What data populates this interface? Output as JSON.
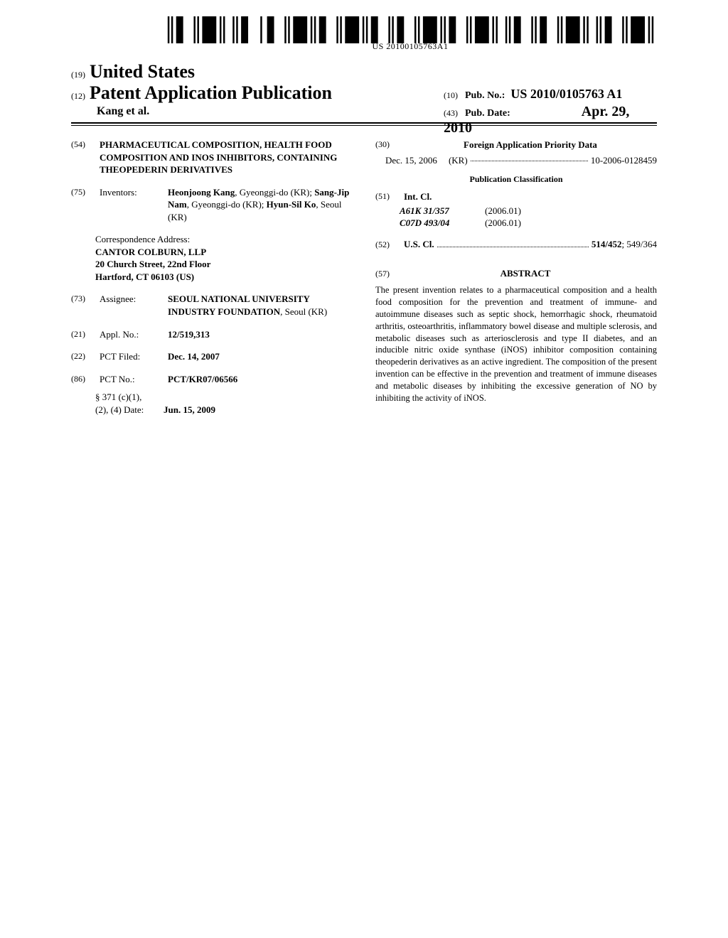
{
  "barcode_text": "US 20100105763A1",
  "header": {
    "inid19": "(19)",
    "country": "United States",
    "inid12": "(12)",
    "kind": "Patent Application Publication",
    "authors": "Kang et al.",
    "inid10": "(10)",
    "pubno_label": "Pub. No.:",
    "pubno": "US 2010/0105763 A1",
    "inid43": "(43)",
    "pubdate_label": "Pub. Date:",
    "pubdate": "Apr. 29, 2010"
  },
  "left": {
    "f54": {
      "inid": "(54)",
      "value": "PHARMACEUTICAL COMPOSITION, HEALTH FOOD COMPOSITION AND INOS INHIBITORS, CONTAINING THEOPEDERIN DERIVATIVES"
    },
    "f75": {
      "inid": "(75)",
      "label": "Inventors:",
      "value_html": "<b>Heonjoong Kang</b>, Gyeonggi-do (KR); <b>Sang-Jip Nam</b>, Gyeonggi-do (KR); <b>Hyun-Sil Ko</b>, Seoul (KR)"
    },
    "corr": {
      "label": "Correspondence Address:",
      "lines": [
        "CANTOR COLBURN, LLP",
        "20 Church Street, 22nd Floor",
        "Hartford, CT 06103 (US)"
      ]
    },
    "f73": {
      "inid": "(73)",
      "label": "Assignee:",
      "value_html": "<b>SEOUL NATIONAL UNIVERSITY INDUSTRY FOUNDATION</b>, Seoul (KR)"
    },
    "f21": {
      "inid": "(21)",
      "label": "Appl. No.:",
      "value": "12/519,313"
    },
    "f22": {
      "inid": "(22)",
      "label": "PCT Filed:",
      "value": "Dec. 14, 2007"
    },
    "f86": {
      "inid": "(86)",
      "label": "PCT No.:",
      "value": "PCT/KR07/06566"
    },
    "f371": {
      "label1": "§ 371 (c)(1),",
      "label2": "(2), (4) Date:",
      "value": "Jun. 15, 2009"
    }
  },
  "right": {
    "f30": {
      "inid": "(30)",
      "heading": "Foreign Application Priority Data",
      "date": "Dec. 15, 2006",
      "country": "(KR)",
      "number": "10-2006-0128459"
    },
    "pubclass_heading": "Publication Classification",
    "f51": {
      "inid": "(51)",
      "label": "Int. Cl.",
      "rows": [
        {
          "code": "A61K 31/357",
          "ver": "(2006.01)"
        },
        {
          "code": "C07D 493/04",
          "ver": "(2006.01)"
        }
      ]
    },
    "f52": {
      "inid": "(52)",
      "label": "U.S. Cl.",
      "value": "514/452; 549/364"
    },
    "f57": {
      "inid": "(57)",
      "heading": "ABSTRACT",
      "body": "The present invention relates to a pharmaceutical composition and a health food composition for the prevention and treatment of immune- and autoimmune diseases such as septic shock, hemorrhagic shock, rheumatoid arthritis, osteoarthritis, inflammatory bowel disease and multiple sclerosis, and metabolic diseases such as arteriosclerosis and type II diabetes, and an inducible nitric oxide synthase (iNOS) inhibitor composition containing theopederin derivatives as an active ingredient. The composition of the present invention can be effective in the prevention and treatment of immune diseases and metabolic diseases by inhibiting the excessive generation of NO by inhibiting the activity of iNOS."
    }
  }
}
